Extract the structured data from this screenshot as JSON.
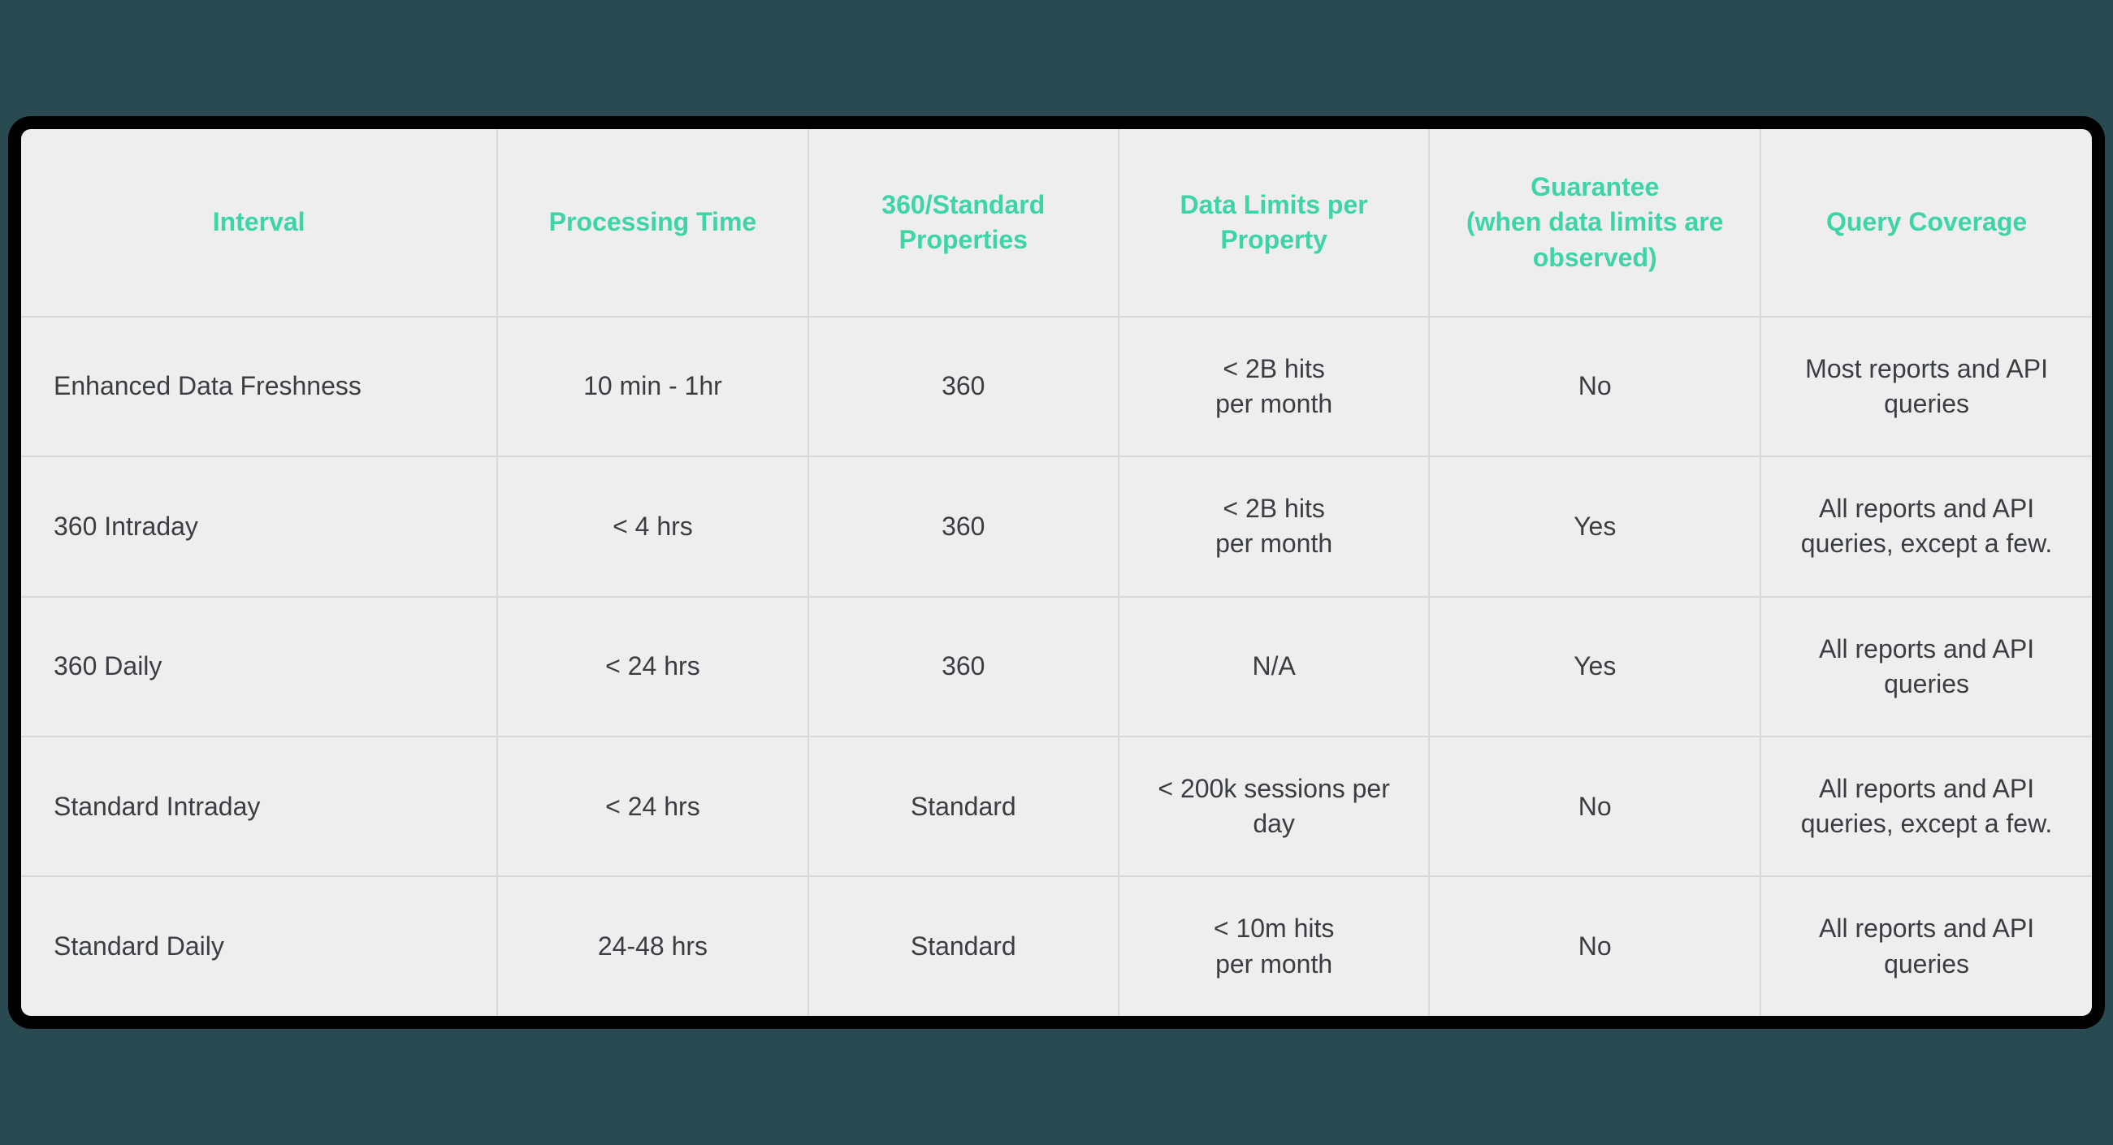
{
  "table": {
    "type": "table",
    "header_color": "#3dd4a7",
    "text_color": "#3a3d42",
    "background_color": "#eeeeee",
    "border_color": "#d8d8d8",
    "frame_color": "#000000",
    "page_background": "#2a4a52",
    "header_font_size": 32,
    "cell_font_size": 32,
    "header_font_weight": 700,
    "columns": [
      {
        "label": "Interval",
        "width_pct": 23,
        "align": "left"
      },
      {
        "label": "Processing Time",
        "width_pct": 15,
        "align": "center"
      },
      {
        "label": "360/Standard Properties",
        "width_pct": 15,
        "align": "center"
      },
      {
        "label": "Data Limits per Property",
        "width_pct": 15,
        "align": "center"
      },
      {
        "label": "Guarantee\n(when data limits are observed)",
        "width_pct": 16,
        "align": "center"
      },
      {
        "label": "Query Coverage",
        "width_pct": 16,
        "align": "center"
      }
    ],
    "rows": [
      {
        "interval": "Enhanced Data Freshness",
        "processing_time": "10 min - 1hr",
        "properties": "360",
        "data_limits": "< 2B hits\nper month",
        "guarantee": "No",
        "query_coverage": "Most reports and API queries"
      },
      {
        "interval": "360 Intraday",
        "processing_time": "< 4 hrs",
        "properties": "360",
        "data_limits": "< 2B hits\nper month",
        "guarantee": "Yes",
        "query_coverage": "All reports and API queries, except a few."
      },
      {
        "interval": "360 Daily",
        "processing_time": "< 24 hrs",
        "properties": "360",
        "data_limits": "N/A",
        "guarantee": "Yes",
        "query_coverage": "All reports and API queries"
      },
      {
        "interval": "Standard Intraday",
        "processing_time": "< 24 hrs",
        "properties": "Standard",
        "data_limits": "< 200k sessions per day",
        "guarantee": "No",
        "query_coverage": "All reports and API queries, except a few."
      },
      {
        "interval": "Standard Daily",
        "processing_time": "24-48 hrs",
        "properties": "Standard",
        "data_limits": "< 10m hits\nper month",
        "guarantee": "No",
        "query_coverage": "All reports and API queries"
      }
    ]
  }
}
